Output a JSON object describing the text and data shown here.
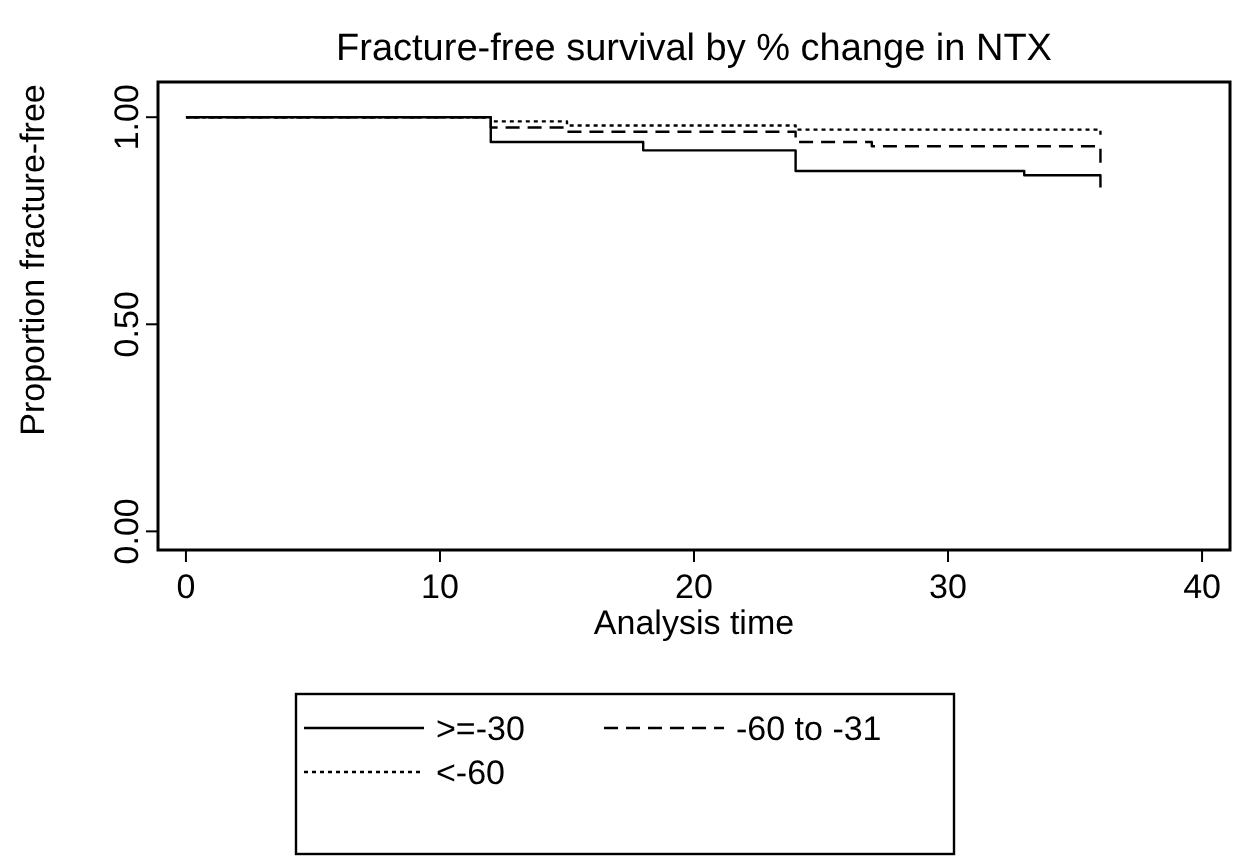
{
  "chart_data": {
    "type": "step",
    "title": "Fracture-free survival by % change in NTX",
    "xlabel": "Analysis time",
    "ylabel": "Proportion fracture-free",
    "xlim": [
      -1.1,
      41.1
    ],
    "ylim": [
      -0.045,
      1.085
    ],
    "xticks": [
      0,
      10,
      20,
      30,
      40
    ],
    "yticks": [
      {
        "value": 0,
        "label": "0.00"
      },
      {
        "value": 0.5,
        "label": "0.50"
      },
      {
        "value": 1,
        "label": "1.00"
      }
    ],
    "grid": false,
    "legend": "bottom",
    "series": [
      {
        "name": ">=-30",
        "color": "#000000",
        "line_style": "solid",
        "x": [
          0,
          12,
          18,
          24,
          33,
          36
        ],
        "values": [
          1,
          0.94,
          0.92,
          0.87,
          0.86,
          0.83
        ]
      },
      {
        "name": "-60 to -31",
        "color": "#000000",
        "line_style": "dashed",
        "x": [
          0,
          12,
          15,
          24,
          27,
          36
        ],
        "values": [
          1,
          0.975,
          0.965,
          0.94,
          0.93,
          0.89
        ]
      },
      {
        "name": "<-60",
        "color": "#000000",
        "line_style": "dotted",
        "x": [
          0,
          12,
          15,
          24,
          36
        ],
        "values": [
          1,
          0.99,
          0.98,
          0.97,
          0.95
        ]
      }
    ]
  }
}
